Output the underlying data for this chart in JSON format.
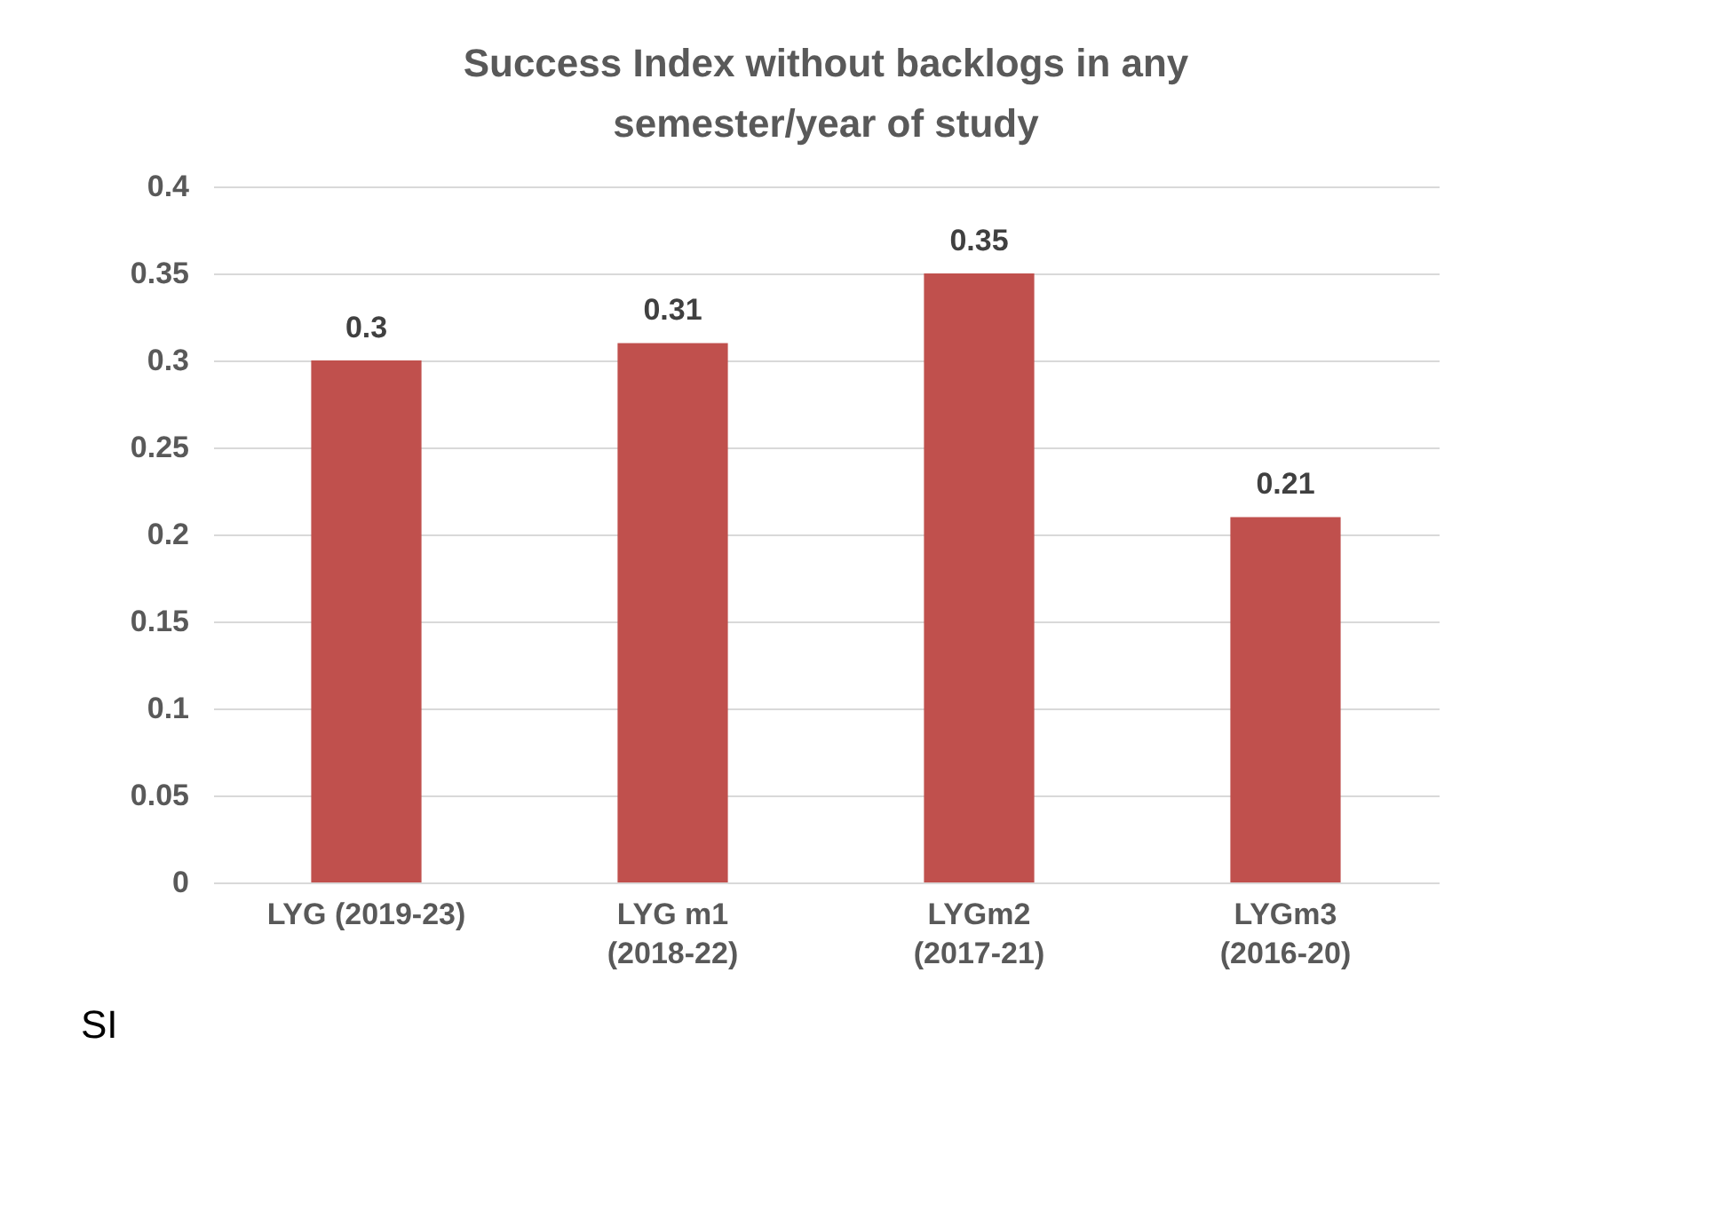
{
  "chart_data": {
    "type": "bar",
    "title": "Success Index without backlogs in any semester/year of study",
    "xlabel": "SI",
    "categories": [
      "LYG (2019-23)",
      "LYG m1 (2018-22)",
      "LYGm2 (2017-21)",
      "LYGm3 (2016-20)"
    ],
    "values": [
      0.3,
      0.31,
      0.35,
      0.21
    ],
    "color": "#c0504d",
    "ylim": [
      0,
      0.4
    ],
    "yticks": [
      0,
      0.05,
      0.1,
      0.15,
      0.2,
      0.25,
      0.3,
      0.35,
      0.4
    ],
    "grid": "y",
    "data_labels": true
  }
}
